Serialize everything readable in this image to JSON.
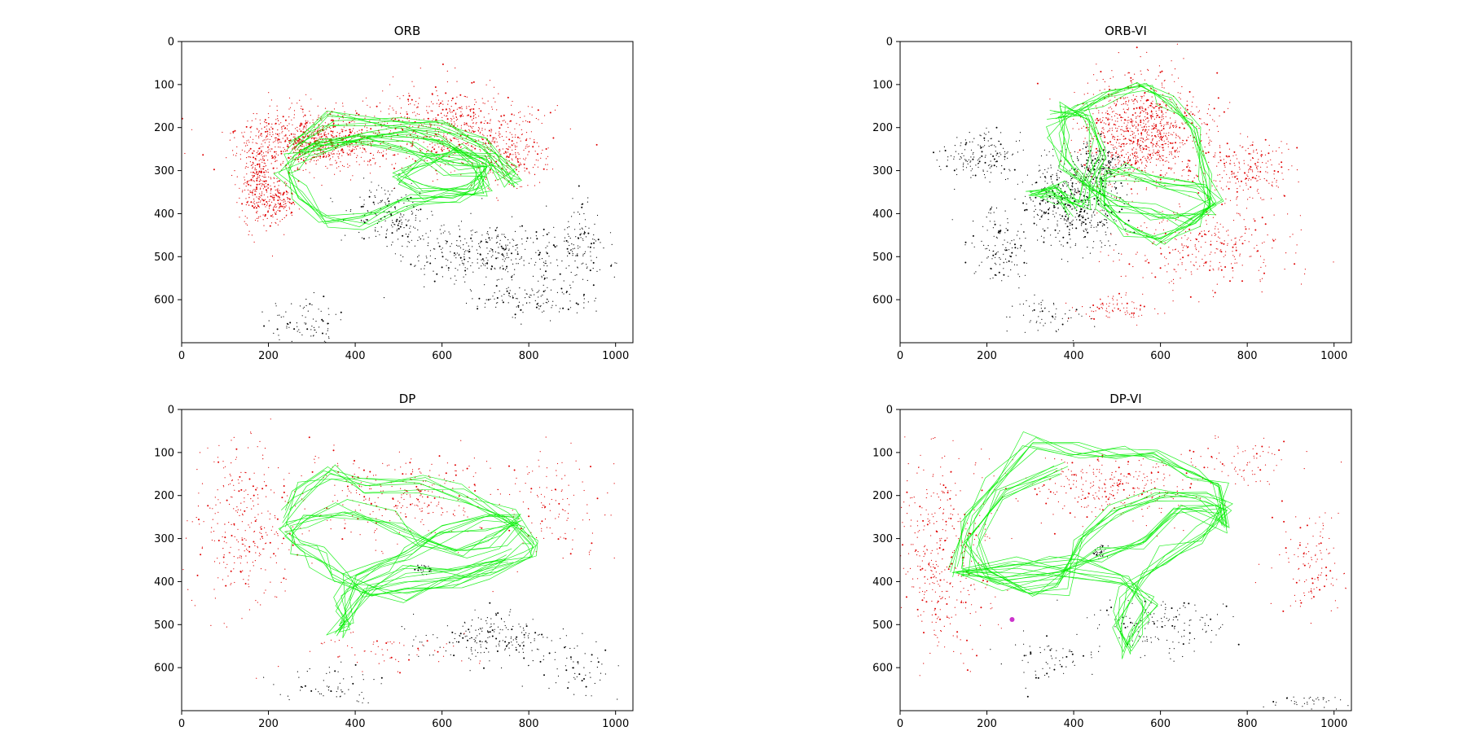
{
  "figure": {
    "colors": {
      "map_points_near": "#e00000",
      "map_points_far": "#000000",
      "trajectory": "#00ee00",
      "marker": "#cc33cc"
    }
  },
  "chart_data": [
    {
      "type": "scatter",
      "title": "ORB",
      "xlabel": "",
      "ylabel": "",
      "xlim": [
        0,
        1040
      ],
      "ylim": [
        0,
        700
      ],
      "y_inverted": true,
      "xticks": [
        0,
        200,
        400,
        600,
        800,
        1000
      ],
      "yticks": [
        0,
        100,
        200,
        300,
        400,
        500,
        600
      ],
      "grid": false,
      "series": [
        {
          "color": "#e00000",
          "kind": "points",
          "clusters": [
            [
              300,
              230,
              160,
              60,
              900
            ],
            [
              180,
              330,
              40,
              90,
              300
            ],
            [
              620,
              200,
              160,
              90,
              600
            ],
            [
              230,
              370,
              30,
              40,
              120
            ],
            [
              750,
              270,
              80,
              70,
              220
            ]
          ]
        },
        {
          "color": "#000000",
          "kind": "points",
          "clusters": [
            [
              700,
              490,
              180,
              60,
              350
            ],
            [
              920,
              480,
              60,
              90,
              120
            ],
            [
              480,
              400,
              90,
              70,
              160
            ],
            [
              280,
              650,
              80,
              50,
              80
            ],
            [
              800,
              600,
              130,
              40,
              120
            ]
          ]
        },
        {
          "color": "#00ee00",
          "kind": "trajectory",
          "path": [
            [
              250,
              250
            ],
            [
              340,
              180
            ],
            [
              490,
              190
            ],
            [
              600,
              200
            ],
            [
              700,
              240
            ],
            [
              770,
              300
            ],
            [
              760,
              320
            ],
            [
              700,
              280
            ],
            [
              640,
              250
            ],
            [
              570,
              280
            ],
            [
              500,
              320
            ],
            [
              560,
              350
            ],
            [
              660,
              340
            ],
            [
              700,
              300
            ],
            [
              620,
              290
            ],
            [
              520,
              250
            ],
            [
              420,
              230
            ],
            [
              320,
              240
            ],
            [
              260,
              280
            ],
            [
              240,
              300
            ],
            [
              270,
              350
            ],
            [
              330,
              420
            ],
            [
              420,
              410
            ],
            [
              520,
              370
            ],
            [
              620,
              360
            ],
            [
              700,
              340
            ],
            [
              690,
              280
            ],
            [
              600,
              230
            ],
            [
              520,
              210
            ],
            [
              430,
              220
            ],
            [
              330,
              250
            ],
            [
              280,
              260
            ]
          ],
          "loops": 7,
          "jitter": 22
        }
      ]
    },
    {
      "type": "scatter",
      "title": "ORB-VI",
      "xlabel": "",
      "ylabel": "",
      "xlim": [
        0,
        1040
      ],
      "ylim": [
        0,
        700
      ],
      "y_inverted": true,
      "xticks": [
        0,
        200,
        400,
        600,
        800,
        1000
      ],
      "yticks": [
        0,
        100,
        200,
        300,
        400,
        500,
        600
      ],
      "grid": false,
      "series": [
        {
          "color": "#e00000",
          "kind": "points",
          "clusters": [
            [
              560,
              210,
              130,
              120,
              1000
            ],
            [
              800,
              300,
              90,
              70,
              220
            ],
            [
              700,
              480,
              180,
              80,
              300
            ],
            [
              500,
              620,
              80,
              30,
              80
            ]
          ]
        },
        {
          "color": "#000000",
          "kind": "points",
          "clusters": [
            [
              400,
              370,
              100,
              100,
              500
            ],
            [
              180,
              260,
              80,
              50,
              150
            ],
            [
              230,
              480,
              60,
              80,
              120
            ],
            [
              460,
              290,
              60,
              40,
              150
            ],
            [
              330,
              640,
              90,
              40,
              60
            ]
          ]
        },
        {
          "color": "#00ee00",
          "kind": "trajectory",
          "path": [
            [
              350,
              160
            ],
            [
              410,
              160
            ],
            [
              480,
              130
            ],
            [
              560,
              100
            ],
            [
              620,
              140
            ],
            [
              680,
              200
            ],
            [
              700,
              300
            ],
            [
              720,
              380
            ],
            [
              680,
              420
            ],
            [
              600,
              460
            ],
            [
              520,
              430
            ],
            [
              470,
              380
            ],
            [
              470,
              320
            ],
            [
              520,
              300
            ],
            [
              600,
              330
            ],
            [
              690,
              350
            ],
            [
              730,
              380
            ],
            [
              660,
              410
            ],
            [
              580,
              400
            ],
            [
              500,
              370
            ],
            [
              430,
              330
            ],
            [
              380,
              280
            ],
            [
              360,
              220
            ],
            [
              380,
              160
            ],
            [
              430,
              170
            ],
            [
              460,
              250
            ],
            [
              440,
              330
            ],
            [
              420,
              380
            ],
            [
              360,
              350
            ],
            [
              300,
              360
            ],
            [
              360,
              340
            ],
            [
              390,
              400
            ]
          ],
          "loops": 7,
          "jitter": 22
        }
      ]
    },
    {
      "type": "scatter",
      "title": "DP",
      "xlabel": "",
      "ylabel": "",
      "xlim": [
        0,
        1040
      ],
      "ylim": [
        0,
        700
      ],
      "y_inverted": true,
      "xticks": [
        0,
        200,
        400,
        600,
        800,
        1000
      ],
      "yticks": [
        0,
        100,
        200,
        300,
        400,
        500,
        600
      ],
      "grid": false,
      "series": [
        {
          "color": "#e00000",
          "kind": "points",
          "clusters": [
            [
              150,
              270,
              110,
              180,
              300
            ],
            [
              500,
              200,
              200,
              90,
              300
            ],
            [
              860,
              230,
              110,
              110,
              120
            ],
            [
              480,
              560,
              160,
              40,
              60
            ]
          ]
        },
        {
          "color": "#000000",
          "kind": "points",
          "clusters": [
            [
              720,
              530,
              140,
              50,
              200
            ],
            [
              900,
              600,
              100,
              60,
              60
            ],
            [
              330,
              640,
              120,
              40,
              60
            ],
            [
              560,
              370,
              20,
              10,
              30
            ]
          ]
        },
        {
          "color": "#00ee00",
          "kind": "trajectory",
          "path": [
            [
              240,
              260
            ],
            [
              270,
              190
            ],
            [
              340,
              140
            ],
            [
              430,
              180
            ],
            [
              550,
              180
            ],
            [
              650,
              200
            ],
            [
              760,
              260
            ],
            [
              820,
              310
            ],
            [
              800,
              340
            ],
            [
              720,
              370
            ],
            [
              620,
              400
            ],
            [
              520,
              430
            ],
            [
              430,
              430
            ],
            [
              360,
              380
            ],
            [
              320,
              350
            ],
            [
              270,
              320
            ],
            [
              240,
              280
            ],
            [
              290,
              250
            ],
            [
              380,
              230
            ],
            [
              480,
              260
            ],
            [
              560,
              310
            ],
            [
              640,
              330
            ],
            [
              720,
              300
            ],
            [
              780,
              260
            ],
            [
              700,
              260
            ],
            [
              600,
              280
            ],
            [
              520,
              340
            ],
            [
              460,
              360
            ],
            [
              390,
              400
            ],
            [
              360,
              460
            ],
            [
              380,
              500
            ],
            [
              360,
              510
            ],
            [
              420,
              420
            ],
            [
              520,
              380
            ],
            [
              640,
              380
            ],
            [
              760,
              340
            ]
          ],
          "loops": 7,
          "jitter": 24
        }
      ]
    },
    {
      "type": "scatter",
      "title": "DP-VI",
      "xlabel": "",
      "ylabel": "",
      "xlim": [
        0,
        1040
      ],
      "ylim": [
        0,
        700
      ],
      "y_inverted": true,
      "xticks": [
        0,
        200,
        400,
        600,
        800,
        1000
      ],
      "yticks": [
        0,
        100,
        200,
        300,
        400,
        500,
        600
      ],
      "grid": false,
      "series": [
        {
          "color": "#e00000",
          "kind": "points",
          "clusters": [
            [
              100,
              330,
              100,
              200,
              400
            ],
            [
              480,
              180,
              200,
              70,
              300
            ],
            [
              950,
              360,
              80,
              100,
              120
            ],
            [
              780,
              120,
              120,
              50,
              80
            ]
          ]
        },
        {
          "color": "#000000",
          "kind": "points",
          "clusters": [
            [
              600,
              500,
              140,
              60,
              160
            ],
            [
              350,
              580,
              100,
              50,
              60
            ],
            [
              950,
              680,
              100,
              20,
              40
            ],
            [
              460,
              330,
              20,
              15,
              30
            ]
          ]
        },
        {
          "color": "#00ee00",
          "kind": "trajectory",
          "path": [
            [
              130,
              380
            ],
            [
              160,
              250
            ],
            [
              220,
              170
            ],
            [
              300,
              80
            ],
            [
              400,
              100
            ],
            [
              500,
              100
            ],
            [
              580,
              100
            ],
            [
              680,
              150
            ],
            [
              740,
              170
            ],
            [
              760,
              270
            ],
            [
              720,
              240
            ],
            [
              640,
              230
            ],
            [
              560,
              300
            ],
            [
              460,
              340
            ],
            [
              360,
              370
            ],
            [
              240,
              390
            ],
            [
              130,
              375
            ],
            [
              260,
              360
            ],
            [
              400,
              370
            ],
            [
              520,
              400
            ],
            [
              580,
              450
            ],
            [
              540,
              520
            ],
            [
              520,
              560
            ],
            [
              500,
              500
            ],
            [
              520,
              430
            ],
            [
              560,
              380
            ],
            [
              620,
              330
            ],
            [
              700,
              290
            ],
            [
              760,
              230
            ],
            [
              700,
              200
            ],
            [
              600,
              200
            ],
            [
              500,
              240
            ],
            [
              420,
              300
            ],
            [
              380,
              400
            ],
            [
              300,
              420
            ],
            [
              200,
              380
            ],
            [
              160,
              300
            ],
            [
              240,
              200
            ],
            [
              360,
              140
            ]
          ],
          "loops": 7,
          "jitter": 24
        },
        {
          "color": "#cc33cc",
          "kind": "marker",
          "x": 258,
          "y": 488
        }
      ]
    }
  ]
}
